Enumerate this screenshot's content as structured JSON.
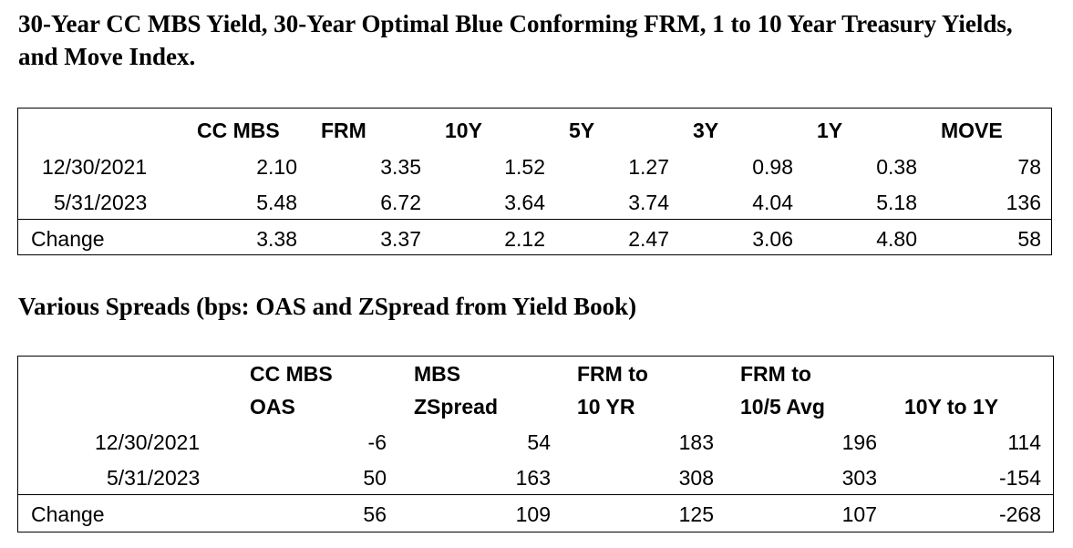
{
  "title1": "30-Year CC MBS Yield, 30-Year Optimal Blue Conforming FRM, 1 to 10 Year Treasury Yields, and Move Index.",
  "table1": {
    "headers": [
      "CC MBS",
      "FRM",
      "10Y",
      "5Y",
      "3Y",
      "1Y",
      "MOVE"
    ],
    "rows": [
      {
        "label": "12/30/2021",
        "values": [
          "2.10",
          "3.35",
          "1.52",
          "1.27",
          "0.98",
          "0.38",
          "78"
        ]
      },
      {
        "label": "5/31/2023",
        "values": [
          "5.48",
          "6.72",
          "3.64",
          "3.74",
          "4.04",
          "5.18",
          "136"
        ]
      },
      {
        "label": "Change",
        "values": [
          "3.38",
          "3.37",
          "2.12",
          "2.47",
          "3.06",
          "4.80",
          "58"
        ]
      }
    ]
  },
  "title2": "Various Spreads (bps:  OAS and ZSpread from Yield Book)",
  "table2": {
    "headers": [
      {
        "line1": "CC MBS",
        "line2": "OAS"
      },
      {
        "line1": "MBS",
        "line2": "ZSpread"
      },
      {
        "line1": "FRM to",
        "line2": "10 YR"
      },
      {
        "line1": "FRM to",
        "line2": "10/5 Avg"
      },
      {
        "line1": "",
        "line2": "10Y to 1Y"
      }
    ],
    "rows": [
      {
        "label": "12/30/2021",
        "values": [
          "-6",
          "54",
          "183",
          "196",
          "114"
        ]
      },
      {
        "label": "5/31/2023",
        "values": [
          "50",
          "163",
          "308",
          "303",
          "-154"
        ]
      },
      {
        "label": "Change",
        "values": [
          "56",
          "109",
          "125",
          "107",
          "-268"
        ]
      }
    ]
  }
}
